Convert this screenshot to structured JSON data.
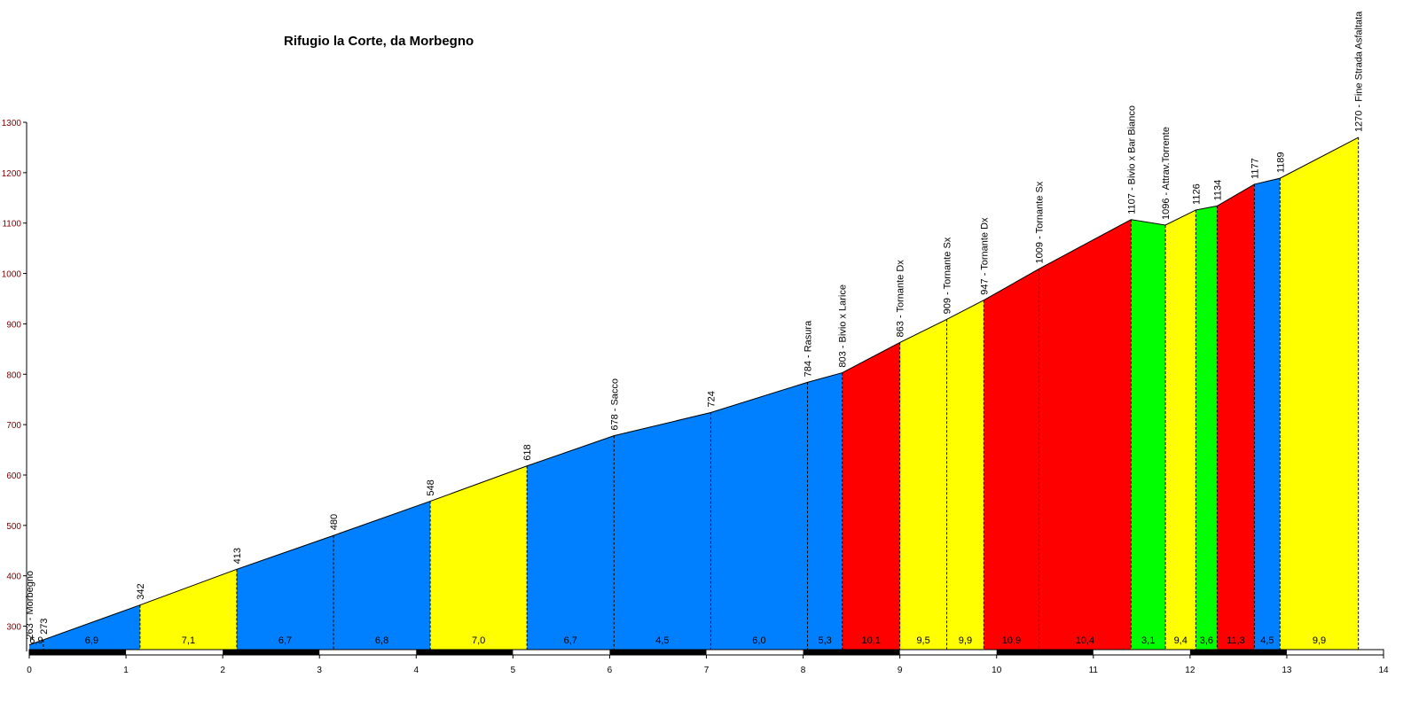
{
  "chart_data": {
    "type": "area",
    "title": "Rifugio la Corte, da Morbegno",
    "xlim": [
      0,
      14
    ],
    "ylim": [
      250,
      1300
    ],
    "x_ticks": [
      "0",
      "1",
      "2",
      "3",
      "4",
      "5",
      "6",
      "7",
      "8",
      "9",
      "10",
      "11",
      "12",
      "13",
      "14"
    ],
    "y_ticks": [
      "300",
      "400",
      "500",
      "600",
      "700",
      "800",
      "900",
      "1000",
      "1100",
      "1200",
      "1300"
    ],
    "points": [
      {
        "x": 0.0,
        "y": 263,
        "label": "263 - Morbegno"
      },
      {
        "x": 0.145,
        "y": 273,
        "label": "273"
      },
      {
        "x": 1.145,
        "y": 342,
        "label": "342"
      },
      {
        "x": 2.145,
        "y": 413,
        "label": "413"
      },
      {
        "x": 3.145,
        "y": 480,
        "label": "480"
      },
      {
        "x": 4.145,
        "y": 548,
        "label": "548"
      },
      {
        "x": 5.145,
        "y": 618,
        "label": "618"
      },
      {
        "x": 6.045,
        "y": 678,
        "label": "678 - Sacco"
      },
      {
        "x": 7.045,
        "y": 724,
        "label": "724"
      },
      {
        "x": 8.045,
        "y": 784,
        "label": "784 - Rasura"
      },
      {
        "x": 8.405,
        "y": 803,
        "label": "803 - Bivio x Larice"
      },
      {
        "x": 9.0,
        "y": 863,
        "label": "863 - Tornante Dx"
      },
      {
        "x": 9.485,
        "y": 909,
        "label": "909 - Tornante Sx"
      },
      {
        "x": 9.868,
        "y": 947,
        "label": "947 - Tornante Dx"
      },
      {
        "x": 10.438,
        "y": 1009,
        "label": "1009 - Tornante Sx"
      },
      {
        "x": 11.39,
        "y": 1107,
        "label": "1107 - Bivio x Bar Bianco"
      },
      {
        "x": 11.745,
        "y": 1096,
        "label": "1096 - Attrav.Torrente"
      },
      {
        "x": 12.06,
        "y": 1126,
        "label": "1126"
      },
      {
        "x": 12.28,
        "y": 1134,
        "label": "1134"
      },
      {
        "x": 12.665,
        "y": 1177,
        "label": "1177"
      },
      {
        "x": 12.93,
        "y": 1189,
        "label": "1189"
      },
      {
        "x": 13.74,
        "y": 1270,
        "label": "1270 - Fine Strada Asfaltata"
      }
    ],
    "segment_gradients": [
      "6,9",
      "6,9",
      "7,1",
      "6,7",
      "6,8",
      "7,0",
      "6,7",
      "4,5",
      "6,0",
      "5,3",
      "10,1",
      "9,5",
      "9,9",
      "10,9",
      "10,4",
      "3,1",
      "9,4",
      "3,6",
      "11,3",
      "4,5",
      "9,9"
    ],
    "segment_colors": [
      "blue",
      "blue",
      "yellow",
      "blue",
      "blue",
      "yellow",
      "blue",
      "blue",
      "blue",
      "blue",
      "red",
      "yellow",
      "yellow",
      "red",
      "red",
      "green",
      "yellow",
      "green",
      "red",
      "blue",
      "yellow"
    ],
    "first_segment_label": "6,9",
    "palette": {
      "blue": "#0080ff",
      "yellow": "#ffff00",
      "red": "#ff0000",
      "green": "#00ff00",
      "axis": "#000000",
      "axis_label": "#7a0000"
    },
    "grid": false,
    "legend": "none"
  }
}
